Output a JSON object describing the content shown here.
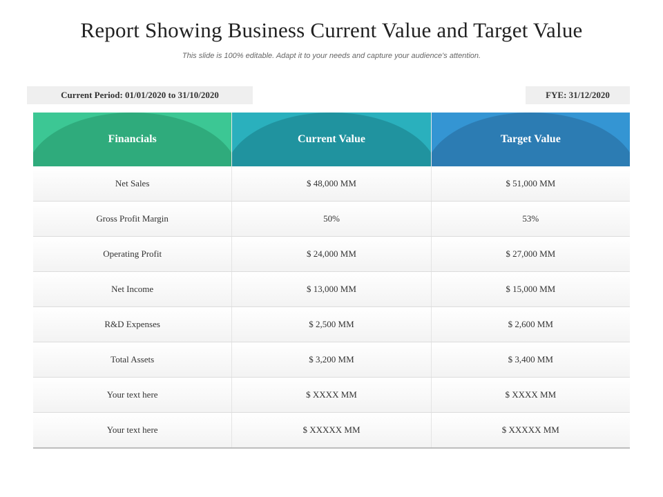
{
  "title": "Report Showing Business Current Value and Target Value",
  "subtitle": "This slide is 100% editable. Adapt it to your needs and capture your audience's attention.",
  "period": "Current Period: 01/01/2020 to 31/10/2020",
  "fye": "FYE: 31/12/2020",
  "colors": {
    "financials_header": "#3cc794",
    "current_header": "#2ab0bd",
    "target_header": "#3495d3"
  },
  "table": {
    "headers": [
      "Financials",
      "Current Value",
      "Target Value"
    ],
    "rows": [
      [
        "Net Sales",
        "$ 48,000 MM",
        "$ 51,000 MM"
      ],
      [
        "Gross Profit Margin",
        "50%",
        "53%"
      ],
      [
        "Operating Profit",
        "$ 24,000 MM",
        "$ 27,000 MM"
      ],
      [
        "Net Income",
        "$ 13,000 MM",
        "$ 15,000 MM"
      ],
      [
        "R&D Expenses",
        "$ 2,500 MM",
        "$ 2,600 MM"
      ],
      [
        "Total Assets",
        "$ 3,200 MM",
        "$ 3,400 MM"
      ],
      [
        "Your text here",
        "$ XXXX MM",
        "$ XXXX MM"
      ],
      [
        "Your text here",
        "$ XXXXX MM",
        "$ XXXXX MM"
      ]
    ]
  }
}
